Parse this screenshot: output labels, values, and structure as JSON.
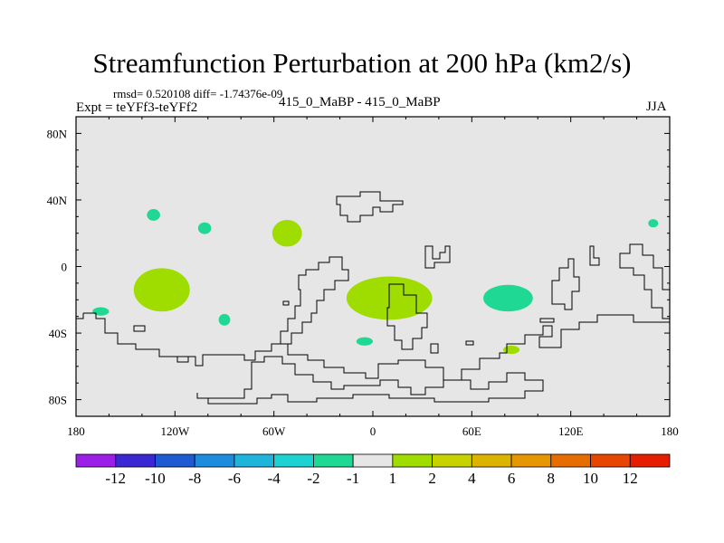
{
  "title": "Streamfunction Perturbation at 200 hPa (km2/s)",
  "stats": "rmsd= 0.520108 diff= -1.74376e-09",
  "expt": "Expt = teYFf3-teYFf2",
  "center_label": "415_0_MaBP - 415_0_MaBP",
  "season": "JJA",
  "colors": {
    "land_bg": "#e6e6e6",
    "pos_fill": "#9fdc00",
    "neg_fill": "#1ed893",
    "coast": "#000000"
  },
  "map": {
    "lon_labels": [
      "180",
      "120W",
      "60W",
      "0",
      "60E",
      "120E",
      "180"
    ],
    "lat_labels": [
      "80N",
      "40N",
      "0",
      "40S",
      "80S"
    ]
  },
  "colorbar": {
    "colors": [
      "#9b1fe6",
      "#3c28d2",
      "#1e5ad2",
      "#1e8cdc",
      "#1eb4dc",
      "#1ed2d2",
      "#1ed893",
      "#e6e6e6",
      "#9fdc00",
      "#c8d200",
      "#dcb400",
      "#e69600",
      "#e66e00",
      "#e64600",
      "#e61e00"
    ],
    "labels": [
      "-12",
      "-10",
      "-8",
      "-6",
      "-4",
      "-2",
      "-1",
      "1",
      "2",
      "4",
      "6",
      "8",
      "10",
      "12"
    ]
  },
  "chart_data": {
    "type": "heatmap",
    "title": "Streamfunction Perturbation at 200 hPa (km2/s)",
    "xlim": [
      -180,
      180
    ],
    "ylim": [
      -90,
      90
    ],
    "anomalies": [
      {
        "lon": -128,
        "lat": -14,
        "rlon": 17,
        "rlat": 13,
        "level": "1 to 2"
      },
      {
        "lon": -52,
        "lat": 20,
        "rlon": 9,
        "rlat": 8,
        "level": "1 to 2"
      },
      {
        "lon": 10,
        "lat": -19,
        "rlon": 26,
        "rlat": 13,
        "level": "1 to 2"
      },
      {
        "lon": 84,
        "lat": -50,
        "rlon": 5,
        "rlat": 2.5,
        "level": "1 to 2"
      },
      {
        "lon": 82,
        "lat": -19,
        "rlon": 15,
        "rlat": 8,
        "level": "-2 to -1"
      },
      {
        "lon": -133,
        "lat": 31,
        "rlon": 4,
        "rlat": 3.5,
        "level": "-2 to -1"
      },
      {
        "lon": -102,
        "lat": 23,
        "rlon": 4,
        "rlat": 3.5,
        "level": "-2 to -1"
      },
      {
        "lon": -165,
        "lat": -27,
        "rlon": 5,
        "rlat": 2.5,
        "level": "-2 to -1"
      },
      {
        "lon": -90,
        "lat": -32,
        "rlon": 3.5,
        "rlat": 3.5,
        "level": "-2 to -1"
      },
      {
        "lon": -5,
        "lat": -45,
        "rlon": 5,
        "rlat": 2.5,
        "level": "-2 to -1"
      },
      {
        "lon": 170,
        "lat": 26,
        "rlon": 3,
        "rlat": 2.5,
        "level": "-2 to -1"
      }
    ]
  }
}
